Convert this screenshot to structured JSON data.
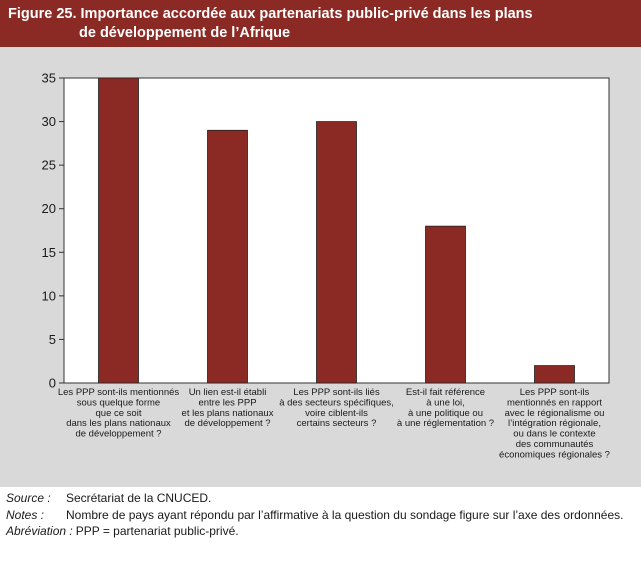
{
  "header": {
    "line1": "Figure 25. Importance accordée aux partenariats public-privé dans les plans",
    "line2": "de développement de l’Afrique"
  },
  "chart_data": {
    "type": "bar",
    "categories": [
      [
        "Les PPP sont-ils mentionnés",
        "sous quelque forme",
        "que ce soit",
        "dans les plans nationaux",
        "de développement ?"
      ],
      [
        "Un lien est-il établi",
        "entre les PPP",
        "et les plans nationaux",
        "de développement ?"
      ],
      [
        "Les PPP sont-ils liés",
        "à des secteurs spécifiques,",
        "voire ciblent-ils",
        "certains secteurs ?"
      ],
      [
        "Est-il fait référence",
        "à une loi,",
        "à une politique ou",
        "à une réglementation ?"
      ],
      [
        "Les PPP sont-ils",
        "mentionnés en rapport",
        "avec le régionalisme ou",
        "l’intégration régionale,",
        "ou dans le contexte",
        "des communautés",
        "économiques régionales ?"
      ]
    ],
    "values": [
      35,
      29,
      30,
      18,
      2
    ],
    "ylim": [
      0,
      35
    ],
    "yticks": [
      0,
      5,
      10,
      15,
      20,
      25,
      30,
      35
    ],
    "bar_color": "#8b2a24",
    "grid": false
  },
  "notes": {
    "source_label": "Source :",
    "source_text": "Secrétariat de la CNUCED.",
    "notes_label": "Notes :",
    "notes_text": "Nombre de pays ayant répondu par l’affirmative à la question du sondage figure sur l’axe des ordonnées.",
    "abbrev_label": "Abréviation :",
    "abbrev_text": "PPP = partenariat public-privé."
  }
}
